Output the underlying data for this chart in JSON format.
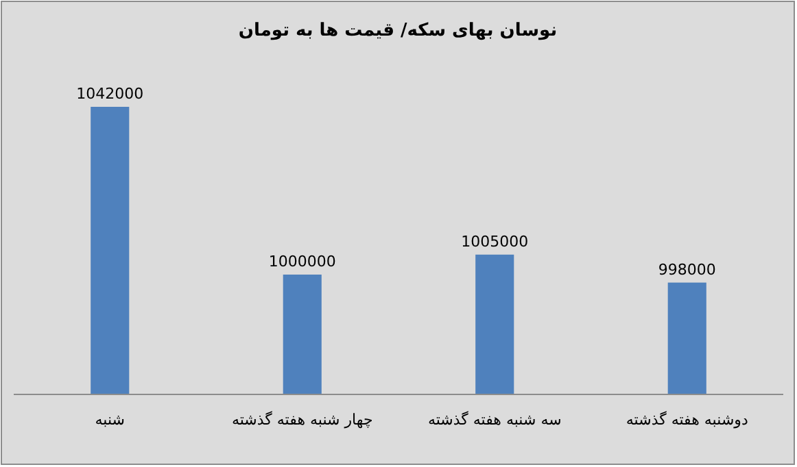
{
  "chart_data": {
    "type": "bar",
    "title": "نوسان بهای سکه/ قیمت ها به تومان",
    "categories": [
      "شنبه",
      "چهار شنبه هفته گذشته",
      "سه شنبه هفته گذشته",
      "دوشنبه هفته گذشته"
    ],
    "values": [
      1042000,
      1000000,
      1005000,
      998000
    ],
    "color": "#4f81bd",
    "ylim": [
      970000,
      1042000
    ],
    "tick_labels": "x",
    "data_labels": true
  }
}
